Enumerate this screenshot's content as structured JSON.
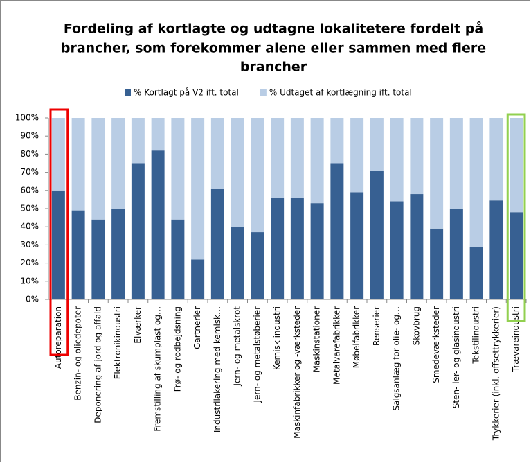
{
  "chart_data": {
    "type": "stacked_bar",
    "title": [
      "Fordeling af kortlagte og udtagne  lokalitetere fordelt  på",
      "brancher, som forekommer alene eller sammen med flere",
      "brancher"
    ],
    "categories": [
      "Autoreparation",
      "Benzin- og oliedepoter",
      "Deponering af jord og affald",
      "Elektronikindustri",
      "Elværker",
      "Fremstilling af skumplast og…",
      "Frø- og rodbejdsning",
      "Gartnerier",
      "Industrilakering med kemisk…",
      "Jern- og metalskrot",
      "Jern- og metalstøberier",
      "Kemisk industri",
      "Maskinfabrikker og -værksteder",
      "Maskinstationer",
      "Metalvarefabrikker",
      "Møbelfabrikker",
      "Renserier",
      "Salgsanlæg for olie- og…",
      "Skovbrug",
      "Smedeværksteder",
      "Sten- ler- og glasindustri",
      "Tekstilindustri",
      "Trykkerier (inkl. offsettrykkerier)",
      "Trævareindustri"
    ],
    "series": [
      {
        "name": "% Kortlagt på V2 ift. total",
        "color": "#376092",
        "values": [
          60,
          49,
          44,
          50,
          75,
          82,
          44,
          22,
          61,
          40,
          37,
          56,
          56,
          53,
          75,
          59,
          71,
          54,
          58,
          39,
          50,
          29,
          54.5,
          48
        ]
      },
      {
        "name": "% Udtaget af kortlægning ift. total",
        "color": "#b9cde5",
        "values": [
          40,
          51,
          56,
          50,
          25,
          18,
          56,
          78,
          39,
          60,
          63,
          44,
          44,
          47,
          25,
          41,
          29,
          46,
          42,
          61,
          50,
          71,
          45.5,
          52
        ]
      }
    ],
    "ylim": [
      0,
      100
    ],
    "yticks": [
      {
        "value": 0,
        "label": "0%"
      },
      {
        "value": 10,
        "label": "10%"
      },
      {
        "value": 20,
        "label": "20%"
      },
      {
        "value": 30,
        "label": "30%"
      },
      {
        "value": 40,
        "label": "40%"
      },
      {
        "value": 50,
        "label": "50%"
      },
      {
        "value": 60,
        "label": "60%"
      },
      {
        "value": 70,
        "label": "70%"
      },
      {
        "value": 80,
        "label": "80%"
      },
      {
        "value": 90,
        "label": "90%"
      },
      {
        "value": 100,
        "label": "100%"
      }
    ],
    "legend": "top"
  }
}
